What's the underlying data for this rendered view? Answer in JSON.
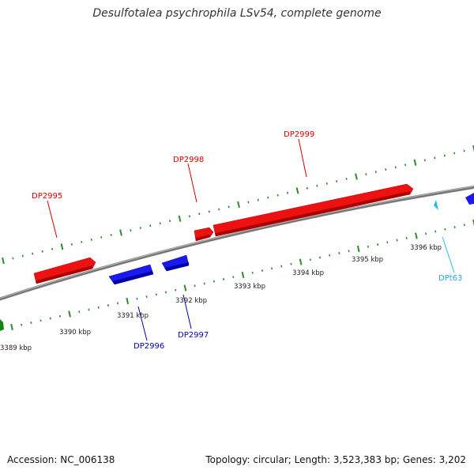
{
  "title": "Desulfotalea psychrophila LSv54, complete genome",
  "footer": {
    "accession": "Accession: NC_006138",
    "stats": "Topology: circular; Length: 3,523,383 bp; Genes: 3,202"
  },
  "colors": {
    "forward_gene": "#ee1111",
    "reverse_gene": "#1a1aee",
    "trna": "#22bbee",
    "other_gene": "#118811",
    "backbone": "#888888",
    "ticks": "#2e8b2e"
  },
  "scale": {
    "kbp_labels": [
      "3389 kbp",
      "3390 kbp",
      "3391 kbp",
      "3392 kbp",
      "3393 kbp",
      "3394 kbp",
      "3395 kbp",
      "3396 kbp"
    ]
  },
  "genes": [
    {
      "label": "DP2995",
      "strand": "forward",
      "labeled": true
    },
    {
      "label": "DP2996",
      "strand": "reverse",
      "labeled": true
    },
    {
      "label": "DP2997",
      "strand": "reverse",
      "labeled": true
    },
    {
      "label": "DP2998",
      "strand": "forward",
      "labeled": true
    },
    {
      "label": "DP2999",
      "strand": "forward",
      "labeled": true
    },
    {
      "label": "DPt63",
      "strand": "reverse",
      "type": "tRNA",
      "labeled": true
    }
  ]
}
